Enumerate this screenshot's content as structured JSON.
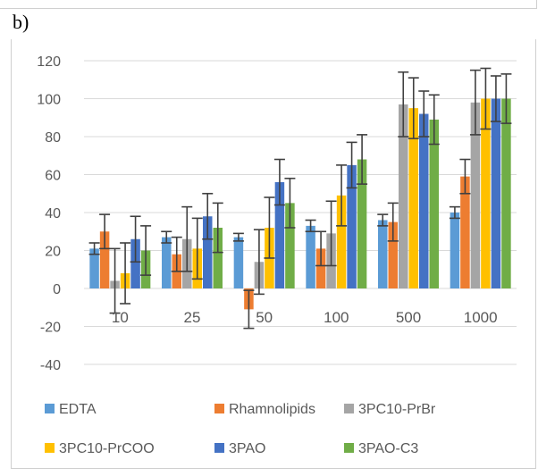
{
  "panel_label": "b)",
  "chart_data": {
    "type": "bar",
    "title": "",
    "xlabel": "",
    "ylabel": "",
    "ylim": [
      -40,
      120
    ],
    "yticks": [
      -40,
      -20,
      0,
      20,
      40,
      60,
      80,
      100,
      120
    ],
    "grid": true,
    "legend_position": "bottom",
    "categories": [
      "10",
      "25",
      "50",
      "100",
      "500",
      "1000"
    ],
    "series": [
      {
        "name": "EDTA",
        "color": "#5b9bd5",
        "values": [
          21,
          27,
          27,
          33,
          36,
          40
        ],
        "errors": [
          3,
          3,
          2,
          3,
          3,
          3
        ]
      },
      {
        "name": "Rhamnolipids",
        "color": "#ed7d31",
        "values": [
          30,
          18,
          -11,
          21,
          35,
          59
        ],
        "errors": [
          9,
          9,
          10,
          9,
          10,
          9
        ]
      },
      {
        "name": "3PC10-PrBr",
        "color": "#a5a5a5",
        "values": [
          4,
          26,
          14,
          29,
          97,
          98
        ],
        "errors": [
          17,
          17,
          17,
          17,
          17,
          17
        ]
      },
      {
        "name": "3PC10-PrCOO",
        "color": "#ffc000",
        "values": [
          8,
          21,
          32,
          49,
          95,
          100
        ],
        "errors": [
          16,
          16,
          16,
          16,
          16,
          16
        ]
      },
      {
        "name": "3PAO",
        "color": "#4472c4",
        "values": [
          26,
          38,
          56,
          65,
          92,
          100
        ],
        "errors": [
          12,
          12,
          12,
          12,
          12,
          12
        ]
      },
      {
        "name": "3PAO-C3",
        "color": "#70ad47",
        "values": [
          20,
          32,
          45,
          68,
          89,
          100
        ],
        "errors": [
          13,
          13,
          13,
          13,
          13,
          13
        ]
      }
    ]
  }
}
